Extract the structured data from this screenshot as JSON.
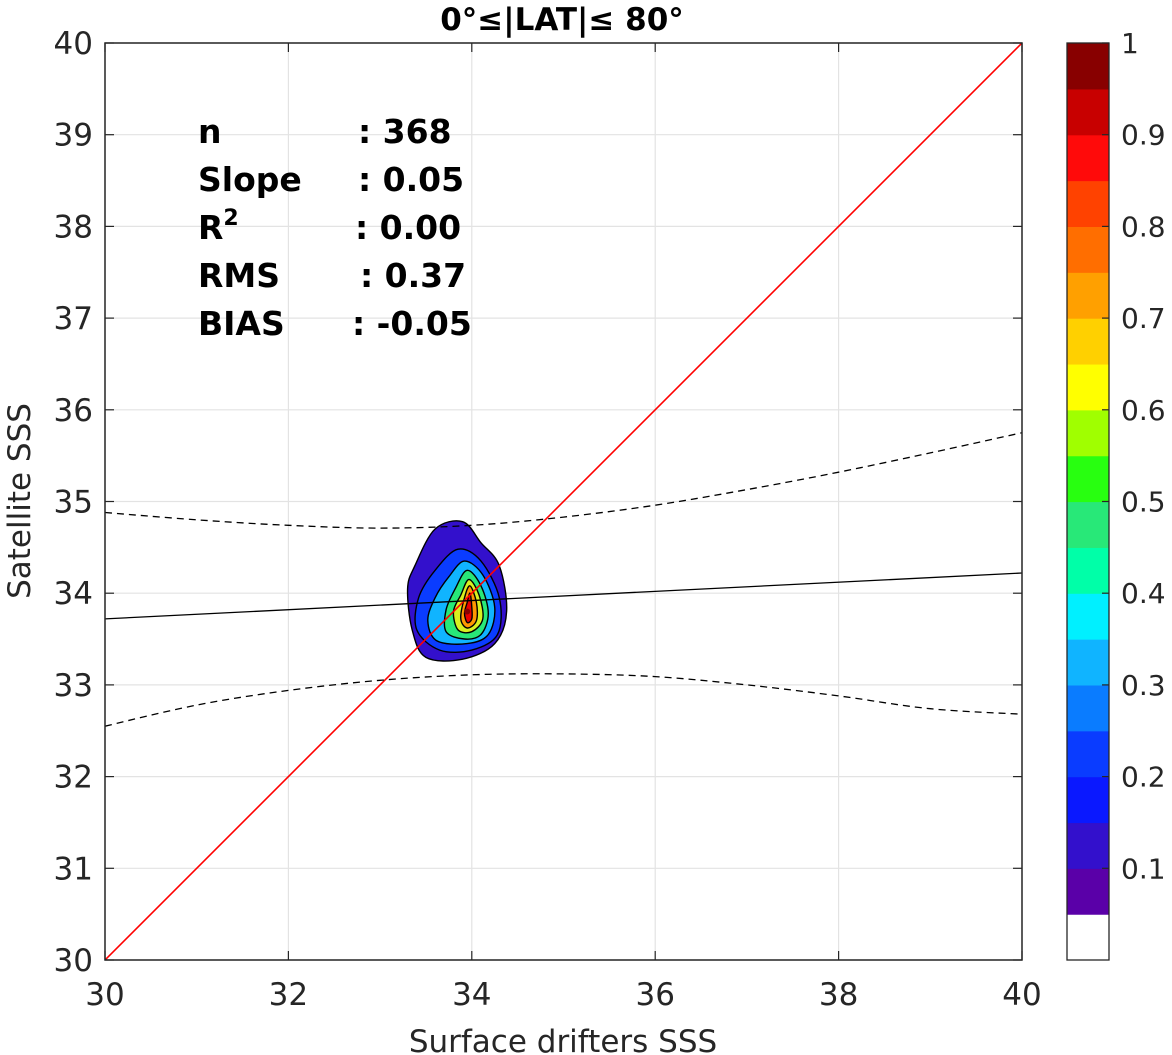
{
  "chart_data": {
    "type": "contour-scatter",
    "title": "0°≤|LAT|≤ 80°",
    "xlabel": "Surface drifters SSS",
    "ylabel": "Satellite SSS",
    "xlim": [
      30,
      40
    ],
    "ylim": [
      30,
      40
    ],
    "xticks": [
      "30",
      "32",
      "34",
      "36",
      "38",
      "40"
    ],
    "yticks": [
      "30",
      "31",
      "32",
      "33",
      "34",
      "35",
      "36",
      "37",
      "38",
      "39",
      "40"
    ],
    "grid": true,
    "stats": [
      {
        "label": "n",
        "value": ": 368"
      },
      {
        "label": "Slope",
        "value": ": 0.05"
      },
      {
        "label": "R",
        "sup": "2",
        "value": ": 0.00"
      },
      {
        "label": "RMS",
        "value": ": 0.37"
      },
      {
        "label": "BIAS",
        "value": ": -0.05"
      }
    ],
    "one_to_one_line": {
      "color": "#ff0000",
      "from": [
        30,
        30
      ],
      "to": [
        40,
        40
      ]
    },
    "fit_line": {
      "color": "#000000",
      "slope": 0.05,
      "from": [
        30,
        33.72
      ],
      "to": [
        40,
        34.22
      ]
    },
    "confidence_upper": [
      [
        30,
        34.88
      ],
      [
        31,
        34.8
      ],
      [
        32,
        34.74
      ],
      [
        33,
        34.71
      ],
      [
        34,
        34.74
      ],
      [
        35,
        34.83
      ],
      [
        36,
        34.96
      ],
      [
        37,
        35.13
      ],
      [
        38,
        35.32
      ],
      [
        39,
        35.53
      ],
      [
        40,
        35.75
      ]
    ],
    "confidence_lower": [
      [
        30,
        32.55
      ],
      [
        31,
        32.78
      ],
      [
        32,
        32.94
      ],
      [
        33,
        33.05
      ],
      [
        34,
        33.11
      ],
      [
        35,
        33.12
      ],
      [
        36,
        33.09
      ],
      [
        37,
        33.0
      ],
      [
        38,
        32.88
      ],
      [
        39,
        32.74
      ],
      [
        40,
        32.68
      ]
    ],
    "density_peak": {
      "x": 33.95,
      "y": 33.8
    },
    "contour_levels": [
      {
        "level": 0.05,
        "color": "#3310cc",
        "ring": [
          [
            33.6,
            34.7
          ],
          [
            33.9,
            34.78
          ],
          [
            34.1,
            34.55
          ],
          [
            34.3,
            34.3
          ],
          [
            34.38,
            33.8
          ],
          [
            34.25,
            33.45
          ],
          [
            33.9,
            33.28
          ],
          [
            33.5,
            33.3
          ],
          [
            33.35,
            33.6
          ],
          [
            33.3,
            34.05
          ],
          [
            33.38,
            34.3
          ]
        ]
      },
      {
        "level": 0.15,
        "color": "#0a3cff",
        "ring": [
          [
            33.6,
            34.25
          ],
          [
            33.85,
            34.48
          ],
          [
            34.1,
            34.35
          ],
          [
            34.3,
            33.95
          ],
          [
            34.28,
            33.55
          ],
          [
            34.0,
            33.38
          ],
          [
            33.65,
            33.38
          ],
          [
            33.4,
            33.6
          ],
          [
            33.42,
            33.95
          ]
        ]
      },
      {
        "level": 0.3,
        "color": "#10b4ff",
        "ring": [
          [
            33.75,
            34.18
          ],
          [
            33.92,
            34.35
          ],
          [
            34.12,
            34.2
          ],
          [
            34.25,
            33.85
          ],
          [
            34.18,
            33.55
          ],
          [
            33.95,
            33.45
          ],
          [
            33.62,
            33.48
          ],
          [
            33.52,
            33.7
          ],
          [
            33.6,
            33.95
          ]
        ]
      },
      {
        "level": 0.45,
        "color": "#28e878",
        "ring": [
          [
            33.82,
            34.05
          ],
          [
            33.95,
            34.25
          ],
          [
            34.1,
            34.08
          ],
          [
            34.18,
            33.78
          ],
          [
            34.1,
            33.55
          ],
          [
            33.92,
            33.5
          ],
          [
            33.72,
            33.58
          ],
          [
            33.72,
            33.82
          ]
        ]
      },
      {
        "level": 0.6,
        "color": "#d8f020",
        "ring": [
          [
            33.88,
            33.98
          ],
          [
            33.97,
            34.15
          ],
          [
            34.08,
            33.98
          ],
          [
            34.12,
            33.72
          ],
          [
            34.0,
            33.58
          ],
          [
            33.85,
            33.6
          ],
          [
            33.8,
            33.8
          ]
        ]
      },
      {
        "level": 0.75,
        "color": "#ff9800",
        "ring": [
          [
            33.92,
            33.95
          ],
          [
            33.98,
            34.08
          ],
          [
            34.05,
            33.9
          ],
          [
            34.05,
            33.7
          ],
          [
            33.95,
            33.62
          ],
          [
            33.88,
            33.72
          ]
        ]
      },
      {
        "level": 0.9,
        "color": "#e80000",
        "ring": [
          [
            33.95,
            33.9
          ],
          [
            33.98,
            34.0
          ],
          [
            34.0,
            33.85
          ],
          [
            34.0,
            33.72
          ],
          [
            33.95,
            33.68
          ],
          [
            33.92,
            33.78
          ]
        ]
      }
    ],
    "colorbar": {
      "ticks": [
        "0.1",
        "0.2",
        "0.3",
        "0.4",
        "0.5",
        "0.6",
        "0.7",
        "0.8",
        "0.9",
        "1"
      ],
      "tick_values": [
        0.1,
        0.2,
        0.3,
        0.4,
        0.5,
        0.6,
        0.7,
        0.8,
        0.9,
        1.0
      ],
      "colors": [
        "#ffffff",
        "#5a00a8",
        "#3310cc",
        "#0a18ff",
        "#0a3cff",
        "#0a7cff",
        "#10b4ff",
        "#00f0ff",
        "#00ffa8",
        "#28e878",
        "#28ff10",
        "#a0ff00",
        "#ffff00",
        "#ffd000",
        "#ffa000",
        "#ff6e00",
        "#ff4200",
        "#ff0a0a",
        "#c80000",
        "#880000"
      ]
    }
  }
}
